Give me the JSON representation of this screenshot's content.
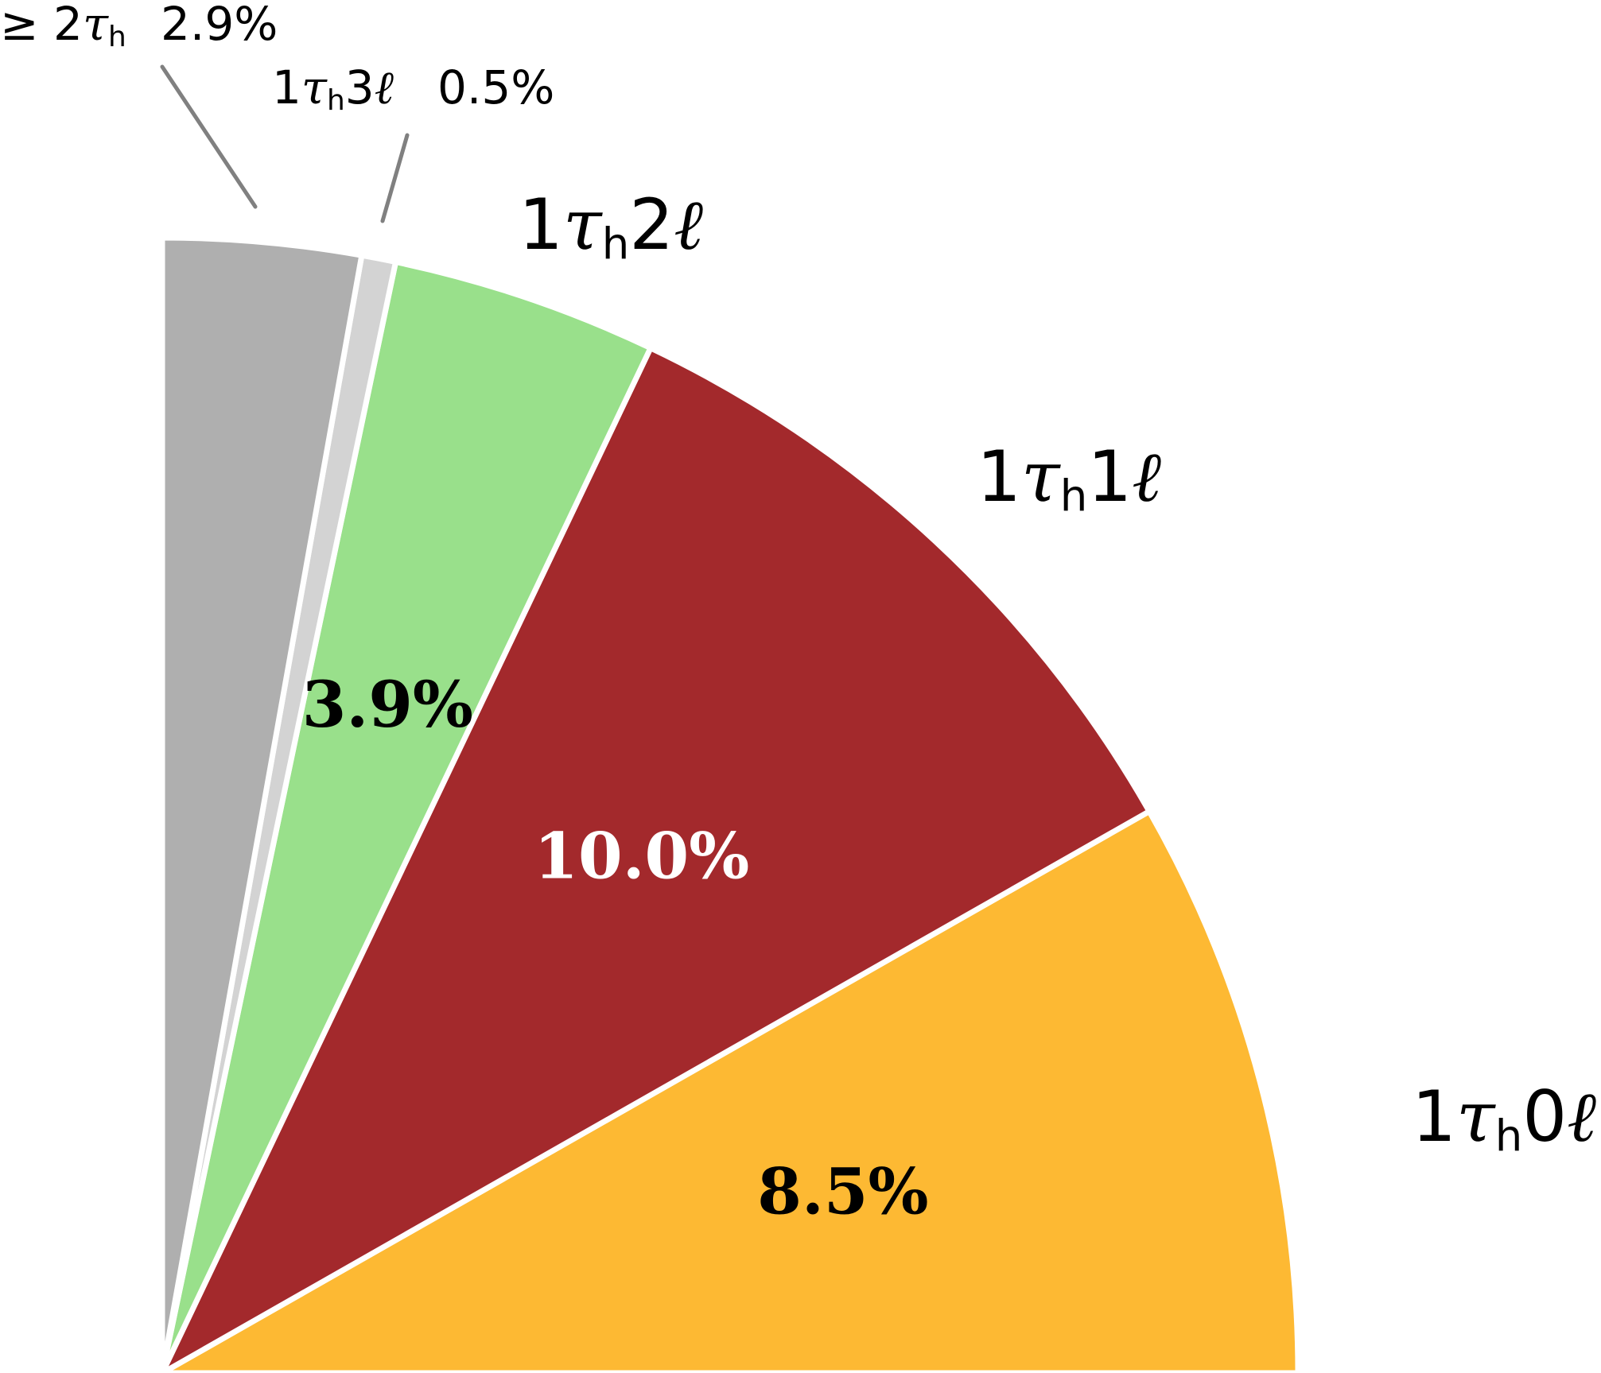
{
  "chart_data": {
    "type": "pie",
    "slices": [
      {
        "pre": "1",
        "sub": "h",
        "post": "0",
        "value": 8.5,
        "value_label": "8.5%",
        "color": "#FDB933",
        "value_color": "#000000",
        "callout": false
      },
      {
        "pre": "1",
        "sub": "h",
        "post": "1",
        "value": 10.0,
        "value_label": "10.0%",
        "color": "#A3292C",
        "value_color": "#FFFFFF",
        "callout": false
      },
      {
        "pre": "1",
        "sub": "h",
        "post": "2",
        "value": 3.9,
        "value_label": "3.9%",
        "color": "#99E08B",
        "value_color": "#000000",
        "callout": false
      },
      {
        "pre": "1",
        "sub": "h",
        "post": "3",
        "value": 0.5,
        "value_label": "0.5%",
        "color": "#D3D3D3",
        "value_color": "#000000",
        "callout": true
      },
      {
        "pre": "≥ 2",
        "sub": "h",
        "post": "",
        "value": 2.9,
        "value_label": "2.9%",
        "color": "#AFAFAF",
        "value_color": "#000000",
        "callout": true
      }
    ],
    "symbols": {
      "tau": "τ",
      "ell": "ℓ"
    },
    "callout_line_color": "#808080",
    "separator_color": "#FFFFFF"
  }
}
